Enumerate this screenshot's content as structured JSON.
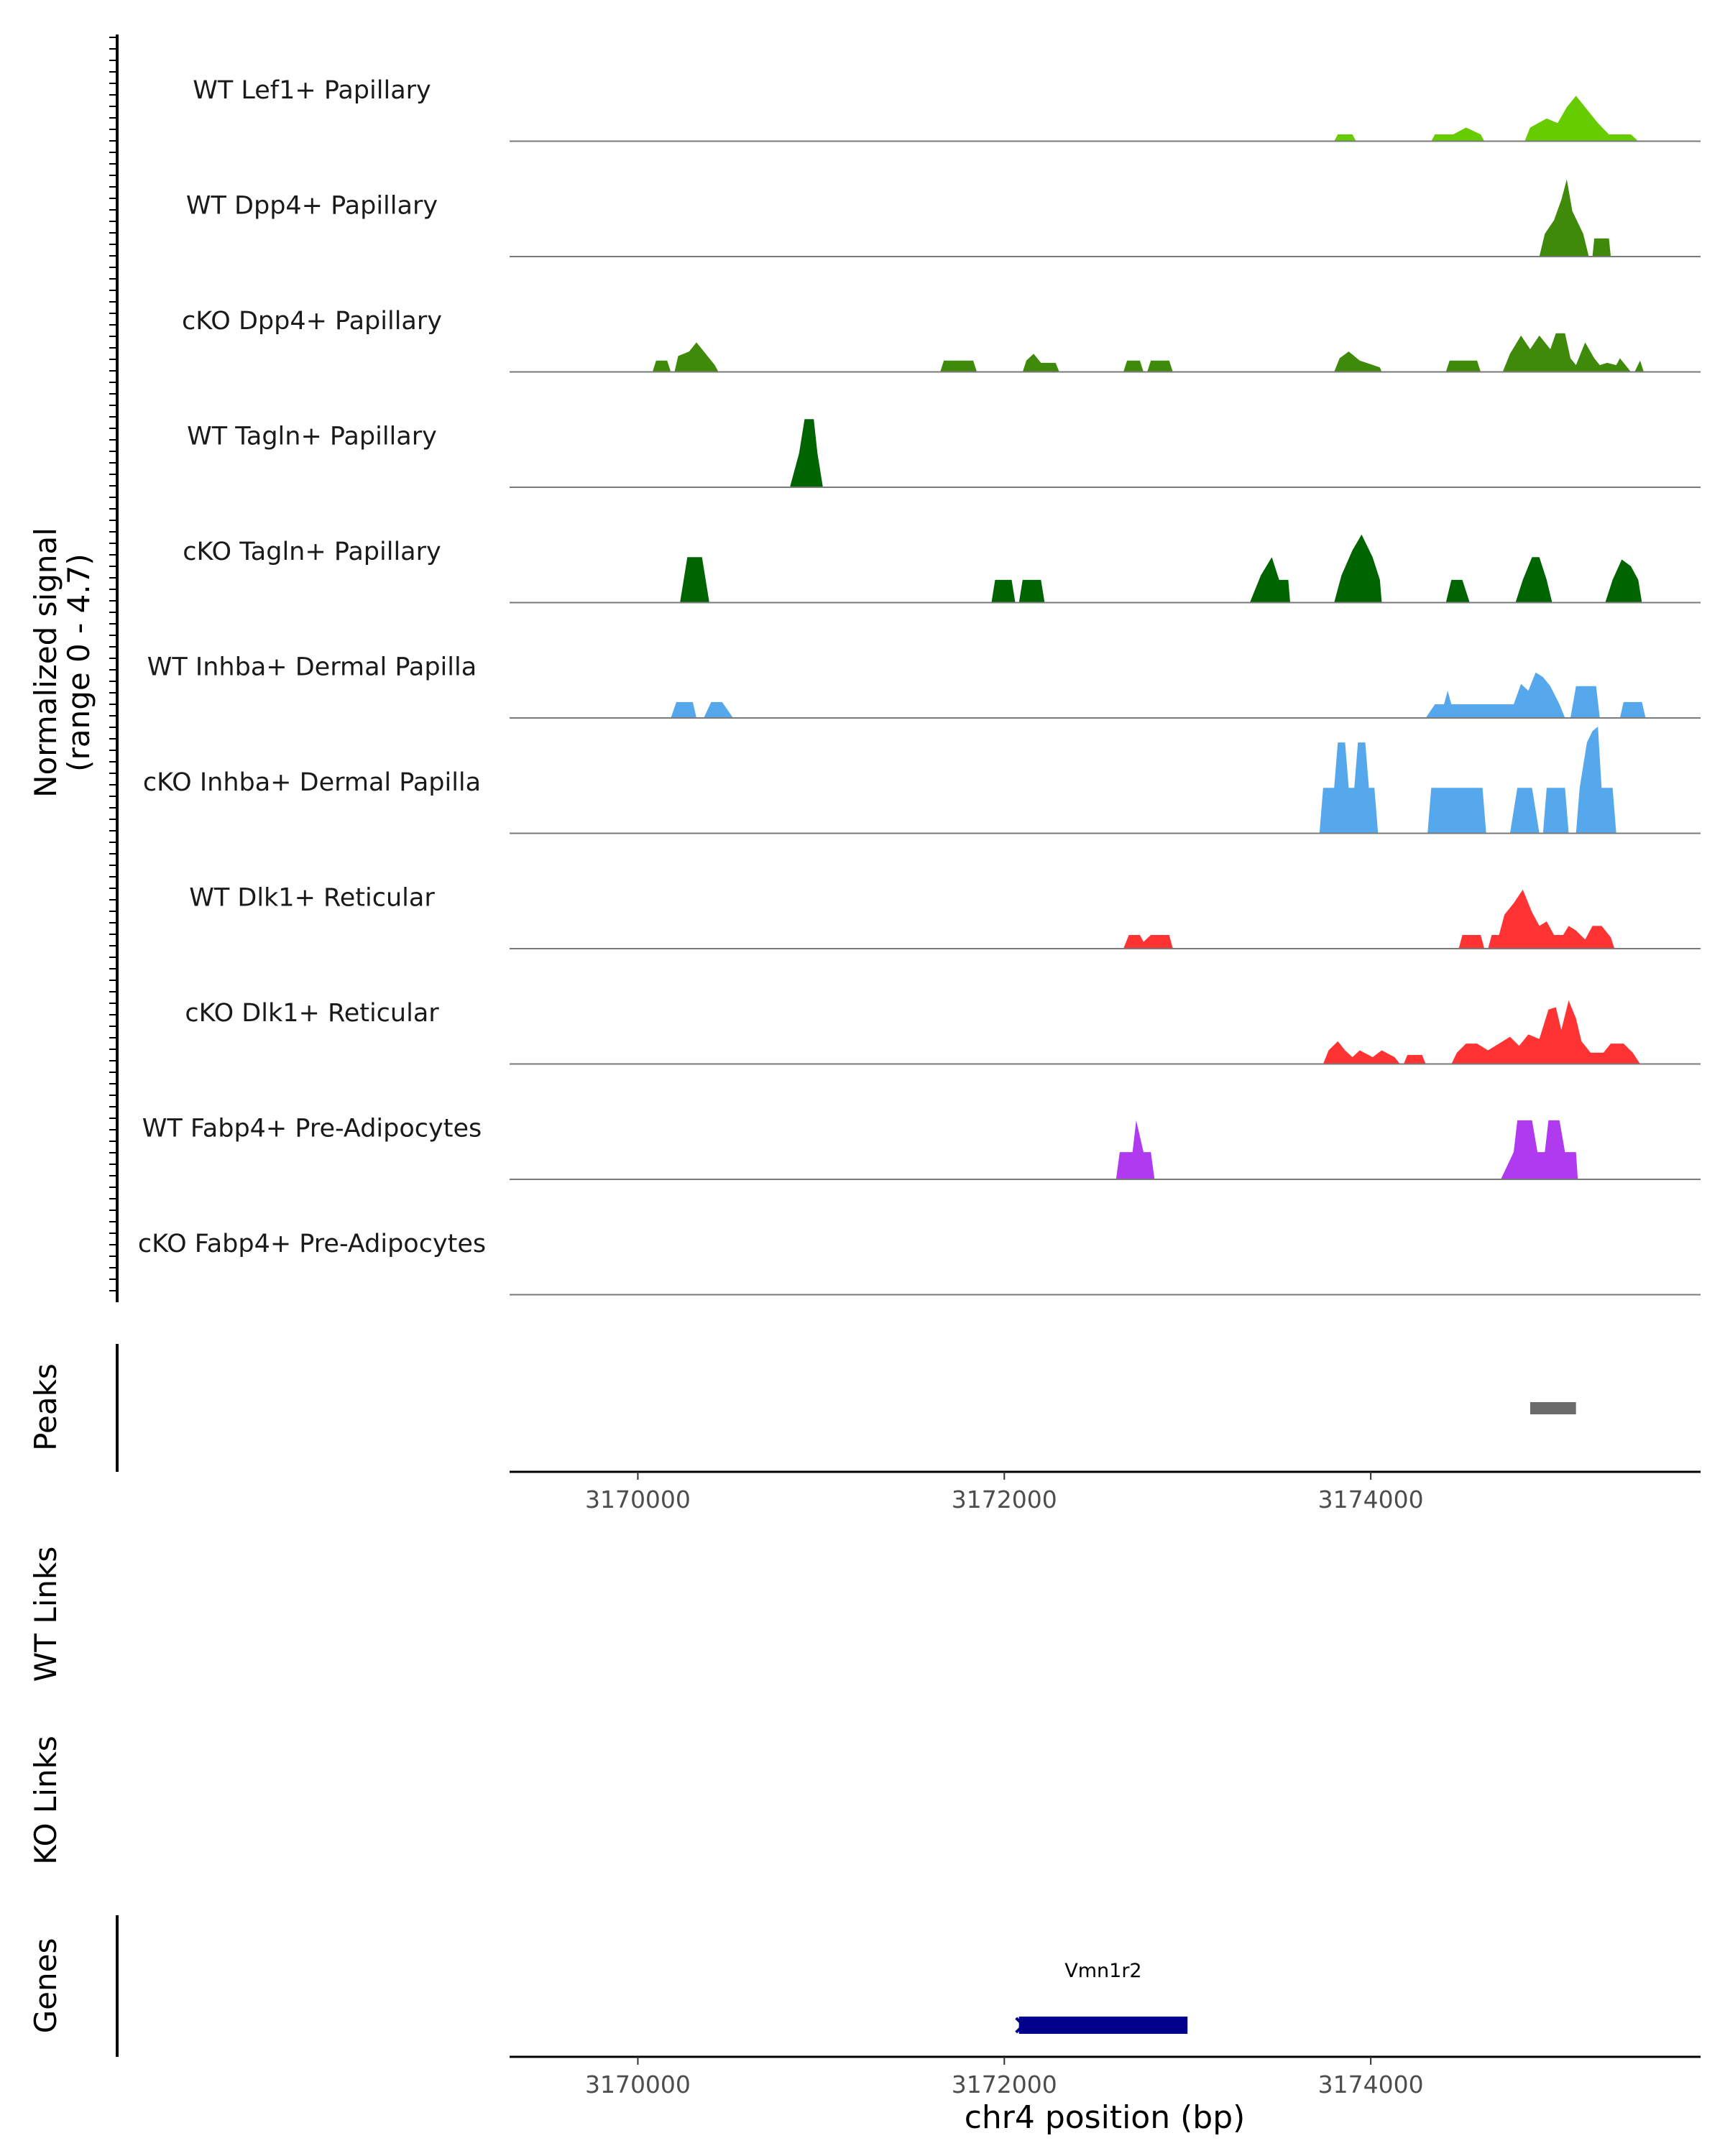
{
  "chart_data": {
    "type": "area",
    "title": "",
    "region": {
      "chrom": "chr4",
      "start": 3169300,
      "end": 3175800
    },
    "signal_axis_label": "Normalized signal",
    "signal_range_label": "(range 0 - 4.7)",
    "ylim": [
      0,
      4.7
    ],
    "tracks": [
      {
        "name": "WT Lef1+ Papillary",
        "color": "#66cc00",
        "points": [
          [
            3173800,
            0
          ],
          [
            3173820,
            0.3
          ],
          [
            3173900,
            0.3
          ],
          [
            3173920,
            0
          ],
          [
            3174330,
            0
          ],
          [
            3174350,
            0.3
          ],
          [
            3174450,
            0.3
          ],
          [
            3174520,
            0.6
          ],
          [
            3174600,
            0.3
          ],
          [
            3174620,
            0
          ],
          [
            3174840,
            0
          ],
          [
            3174870,
            0.6
          ],
          [
            3174960,
            1.0
          ],
          [
            3175020,
            0.8
          ],
          [
            3175070,
            1.5
          ],
          [
            3175120,
            2.0
          ],
          [
            3175180,
            1.4
          ],
          [
            3175240,
            0.8
          ],
          [
            3175300,
            0.3
          ],
          [
            3175420,
            0.3
          ],
          [
            3175460,
            0
          ]
        ]
      },
      {
        "name": "WT Dpp4+ Papillary",
        "color": "#3f8a0a",
        "points": [
          [
            3174920,
            0
          ],
          [
            3174950,
            1.0
          ],
          [
            3175000,
            1.6
          ],
          [
            3175040,
            2.5
          ],
          [
            3175070,
            3.4
          ],
          [
            3175100,
            2.0
          ],
          [
            3175160,
            1.0
          ],
          [
            3175190,
            0
          ],
          [
            3175210,
            0
          ],
          [
            3175220,
            0.8
          ],
          [
            3175300,
            0.8
          ],
          [
            3175310,
            0
          ]
        ]
      },
      {
        "name": "cKO Dpp4+ Papillary",
        "color": "#3f8a0a",
        "points": [
          [
            3170080,
            0
          ],
          [
            3170100,
            0.5
          ],
          [
            3170160,
            0.5
          ],
          [
            3170180,
            0
          ],
          [
            3170200,
            0
          ],
          [
            3170220,
            0.7
          ],
          [
            3170280,
            0.9
          ],
          [
            3170320,
            1.3
          ],
          [
            3170370,
            0.8
          ],
          [
            3170420,
            0.3
          ],
          [
            3170440,
            0
          ],
          [
            3171650,
            0
          ],
          [
            3171670,
            0.5
          ],
          [
            3171830,
            0.5
          ],
          [
            3171850,
            0
          ],
          [
            3172100,
            0
          ],
          [
            3172120,
            0.5
          ],
          [
            3172160,
            0.8
          ],
          [
            3172200,
            0.4
          ],
          [
            3172280,
            0.4
          ],
          [
            3172300,
            0
          ],
          [
            3172650,
            0
          ],
          [
            3172670,
            0.5
          ],
          [
            3172740,
            0.5
          ],
          [
            3172760,
            0
          ],
          [
            3172780,
            0
          ],
          [
            3172800,
            0.5
          ],
          [
            3172900,
            0.5
          ],
          [
            3172920,
            0
          ],
          [
            3173800,
            0
          ],
          [
            3173830,
            0.6
          ],
          [
            3173880,
            0.9
          ],
          [
            3173940,
            0.5
          ],
          [
            3174050,
            0.2
          ],
          [
            3174060,
            0
          ],
          [
            3174410,
            0
          ],
          [
            3174430,
            0.5
          ],
          [
            3174580,
            0.5
          ],
          [
            3174600,
            0
          ],
          [
            3174720,
            0
          ],
          [
            3174760,
            0.8
          ],
          [
            3174820,
            1.6
          ],
          [
            3174870,
            1.0
          ],
          [
            3174920,
            1.6
          ],
          [
            3174980,
            1.0
          ],
          [
            3175010,
            1.7
          ],
          [
            3175060,
            1.7
          ],
          [
            3175090,
            0.6
          ],
          [
            3175120,
            0.3
          ],
          [
            3175170,
            1.3
          ],
          [
            3175220,
            0.6
          ],
          [
            3175250,
            0.3
          ],
          [
            3175290,
            0.4
          ],
          [
            3175340,
            0.3
          ],
          [
            3175360,
            0.6
          ],
          [
            3175390,
            0.3
          ],
          [
            3175420,
            0
          ],
          [
            3175440,
            0
          ],
          [
            3175470,
            0.5
          ],
          [
            3175490,
            0
          ]
        ]
      },
      {
        "name": "WT Tagln+ Papillary",
        "color": "#006400",
        "points": [
          [
            3170830,
            0
          ],
          [
            3170880,
            1.5
          ],
          [
            3170910,
            3.0
          ],
          [
            3170960,
            3.0
          ],
          [
            3170980,
            1.5
          ],
          [
            3171010,
            0
          ]
        ]
      },
      {
        "name": "cKO Tagln+ Papillary",
        "color": "#006400",
        "points": [
          [
            3170230,
            0
          ],
          [
            3170250,
            1.0
          ],
          [
            3170270,
            2.0
          ],
          [
            3170350,
            2.0
          ],
          [
            3170370,
            1.0
          ],
          [
            3170390,
            0
          ],
          [
            3171930,
            0
          ],
          [
            3171950,
            1.0
          ],
          [
            3172040,
            1.0
          ],
          [
            3172060,
            0
          ],
          [
            3172080,
            0
          ],
          [
            3172100,
            1.0
          ],
          [
            3172200,
            1.0
          ],
          [
            3172220,
            0
          ],
          [
            3173340,
            0
          ],
          [
            3173400,
            1.2
          ],
          [
            3173460,
            2.0
          ],
          [
            3173500,
            1.0
          ],
          [
            3173550,
            1.0
          ],
          [
            3173560,
            0
          ],
          [
            3173800,
            0
          ],
          [
            3173840,
            1.2
          ],
          [
            3173900,
            2.3
          ],
          [
            3173950,
            3.0
          ],
          [
            3174010,
            2.0
          ],
          [
            3174050,
            1.0
          ],
          [
            3174060,
            0
          ],
          [
            3174410,
            0
          ],
          [
            3174440,
            1.0
          ],
          [
            3174500,
            1.0
          ],
          [
            3174540,
            0
          ],
          [
            3174790,
            0
          ],
          [
            3174830,
            1.0
          ],
          [
            3174880,
            2.0
          ],
          [
            3174920,
            2.0
          ],
          [
            3174960,
            1.0
          ],
          [
            3174990,
            0
          ],
          [
            3175280,
            0
          ],
          [
            3175320,
            1.0
          ],
          [
            3175370,
            1.9
          ],
          [
            3175420,
            1.6
          ],
          [
            3175460,
            1.0
          ],
          [
            3175480,
            0
          ]
        ]
      },
      {
        "name": "WT Inhba+ Dermal Papilla",
        "color": "#56a8ec",
        "points": [
          [
            3170180,
            0
          ],
          [
            3170210,
            0.7
          ],
          [
            3170300,
            0.7
          ],
          [
            3170320,
            0
          ],
          [
            3170360,
            0
          ],
          [
            3170400,
            0.7
          ],
          [
            3170460,
            0.7
          ],
          [
            3170520,
            0
          ],
          [
            3174300,
            0
          ],
          [
            3174350,
            0.6
          ],
          [
            3174400,
            0.6
          ],
          [
            3174420,
            1.2
          ],
          [
            3174440,
            0.6
          ],
          [
            3174780,
            0.6
          ],
          [
            3174820,
            1.5
          ],
          [
            3174860,
            1.2
          ],
          [
            3174900,
            2.0
          ],
          [
            3174940,
            1.8
          ],
          [
            3174980,
            1.4
          ],
          [
            3175030,
            0.6
          ],
          [
            3175060,
            0
          ],
          [
            3175090,
            0
          ],
          [
            3175120,
            1.4
          ],
          [
            3175230,
            1.4
          ],
          [
            3175250,
            0
          ],
          [
            3175360,
            0
          ],
          [
            3175380,
            0.7
          ],
          [
            3175480,
            0.7
          ],
          [
            3175500,
            0
          ]
        ]
      },
      {
        "name": "cKO Inhba+ Dermal Papilla",
        "color": "#56a8ec",
        "points": [
          [
            3173720,
            0
          ],
          [
            3173740,
            2.0
          ],
          [
            3173800,
            2.0
          ],
          [
            3173820,
            4.0
          ],
          [
            3173860,
            4.0
          ],
          [
            3173880,
            2.0
          ],
          [
            3173910,
            2.0
          ],
          [
            3173930,
            4.0
          ],
          [
            3173970,
            4.0
          ],
          [
            3173990,
            2.0
          ],
          [
            3174020,
            2.0
          ],
          [
            3174040,
            0
          ],
          [
            3174310,
            0
          ],
          [
            3174330,
            2.0
          ],
          [
            3174610,
            2.0
          ],
          [
            3174630,
            0
          ],
          [
            3174760,
            0
          ],
          [
            3174800,
            2.0
          ],
          [
            3174880,
            2.0
          ],
          [
            3174920,
            0
          ],
          [
            3174940,
            0
          ],
          [
            3174960,
            2.0
          ],
          [
            3175060,
            2.0
          ],
          [
            3175080,
            0
          ],
          [
            3175120,
            0
          ],
          [
            3175140,
            2.0
          ],
          [
            3175180,
            4.0
          ],
          [
            3175210,
            4.5
          ],
          [
            3175240,
            4.7
          ],
          [
            3175260,
            2.0
          ],
          [
            3175320,
            2.0
          ],
          [
            3175340,
            0
          ]
        ]
      },
      {
        "name": "WT Dlk1+ Reticular",
        "color": "#ff3333",
        "points": [
          [
            3172650,
            0
          ],
          [
            3172680,
            0.6
          ],
          [
            3172740,
            0.6
          ],
          [
            3172760,
            0.3
          ],
          [
            3172800,
            0.6
          ],
          [
            3172900,
            0.6
          ],
          [
            3172920,
            0
          ],
          [
            3174480,
            0
          ],
          [
            3174500,
            0.6
          ],
          [
            3174600,
            0.6
          ],
          [
            3174620,
            0
          ],
          [
            3174640,
            0
          ],
          [
            3174660,
            0.6
          ],
          [
            3174700,
            0.6
          ],
          [
            3174730,
            1.5
          ],
          [
            3174780,
            2.0
          ],
          [
            3174830,
            2.6
          ],
          [
            3174880,
            1.6
          ],
          [
            3174920,
            1.0
          ],
          [
            3174960,
            1.2
          ],
          [
            3175000,
            0.6
          ],
          [
            3175050,
            0.6
          ],
          [
            3175080,
            1.0
          ],
          [
            3175120,
            0.8
          ],
          [
            3175170,
            0.4
          ],
          [
            3175210,
            1.0
          ],
          [
            3175260,
            1.0
          ],
          [
            3175310,
            0.5
          ],
          [
            3175330,
            0
          ]
        ]
      },
      {
        "name": "cKO Dlk1+ Reticular",
        "color": "#ff3333",
        "points": [
          [
            3173740,
            0
          ],
          [
            3173770,
            0.6
          ],
          [
            3173820,
            1.0
          ],
          [
            3173860,
            0.6
          ],
          [
            3173900,
            0.3
          ],
          [
            3173940,
            0.6
          ],
          [
            3174010,
            0.3
          ],
          [
            3174060,
            0.6
          ],
          [
            3174130,
            0.3
          ],
          [
            3174160,
            0
          ],
          [
            3174180,
            0
          ],
          [
            3174200,
            0.4
          ],
          [
            3174280,
            0.4
          ],
          [
            3174300,
            0
          ],
          [
            3174440,
            0
          ],
          [
            3174470,
            0.5
          ],
          [
            3174520,
            0.9
          ],
          [
            3174580,
            0.9
          ],
          [
            3174640,
            0.6
          ],
          [
            3174700,
            0.9
          ],
          [
            3174760,
            1.2
          ],
          [
            3174810,
            0.8
          ],
          [
            3174860,
            1.3
          ],
          [
            3174920,
            1.1
          ],
          [
            3174970,
            2.4
          ],
          [
            3175010,
            2.5
          ],
          [
            3175040,
            1.5
          ],
          [
            3175080,
            2.8
          ],
          [
            3175120,
            2.0
          ],
          [
            3175150,
            1.0
          ],
          [
            3175200,
            0.5
          ],
          [
            3175270,
            0.5
          ],
          [
            3175310,
            0.9
          ],
          [
            3175380,
            0.9
          ],
          [
            3175430,
            0.5
          ],
          [
            3175470,
            0
          ]
        ]
      },
      {
        "name": "WT Fabp4+ Pre-Adipocytes",
        "color": "#b03aef",
        "points": [
          [
            3172610,
            0
          ],
          [
            3172630,
            1.2
          ],
          [
            3172700,
            1.2
          ],
          [
            3172720,
            2.6
          ],
          [
            3172760,
            1.2
          ],
          [
            3172800,
            1.2
          ],
          [
            3172820,
            0
          ],
          [
            3174710,
            0
          ],
          [
            3174780,
            1.2
          ],
          [
            3174800,
            2.6
          ],
          [
            3174880,
            2.6
          ],
          [
            3174910,
            1.2
          ],
          [
            3174950,
            1.2
          ],
          [
            3174970,
            2.6
          ],
          [
            3175030,
            2.6
          ],
          [
            3175060,
            1.2
          ],
          [
            3175120,
            1.2
          ],
          [
            3175130,
            0
          ]
        ]
      },
      {
        "name": "cKO Fabp4+ Pre-Adipocytes",
        "color": "#b03aef",
        "points": []
      }
    ],
    "peaks_label": "Peaks",
    "peaks": [
      {
        "start": 3174870,
        "end": 3175120,
        "color": "#6b6b6b"
      }
    ],
    "x_ticks": [
      3170000,
      3172000,
      3174000
    ],
    "x_tick_labels": [
      "3170000",
      "3172000",
      "3174000"
    ],
    "links_tracks": [
      "WT Links",
      "KO Links"
    ],
    "genes_label": "Genes",
    "genes": [
      {
        "name": "Vmn1r2",
        "start": 3172080,
        "end": 3173000,
        "strand": "-",
        "color": "#00008b"
      }
    ],
    "xlabel": "chr4 position (bp)"
  }
}
